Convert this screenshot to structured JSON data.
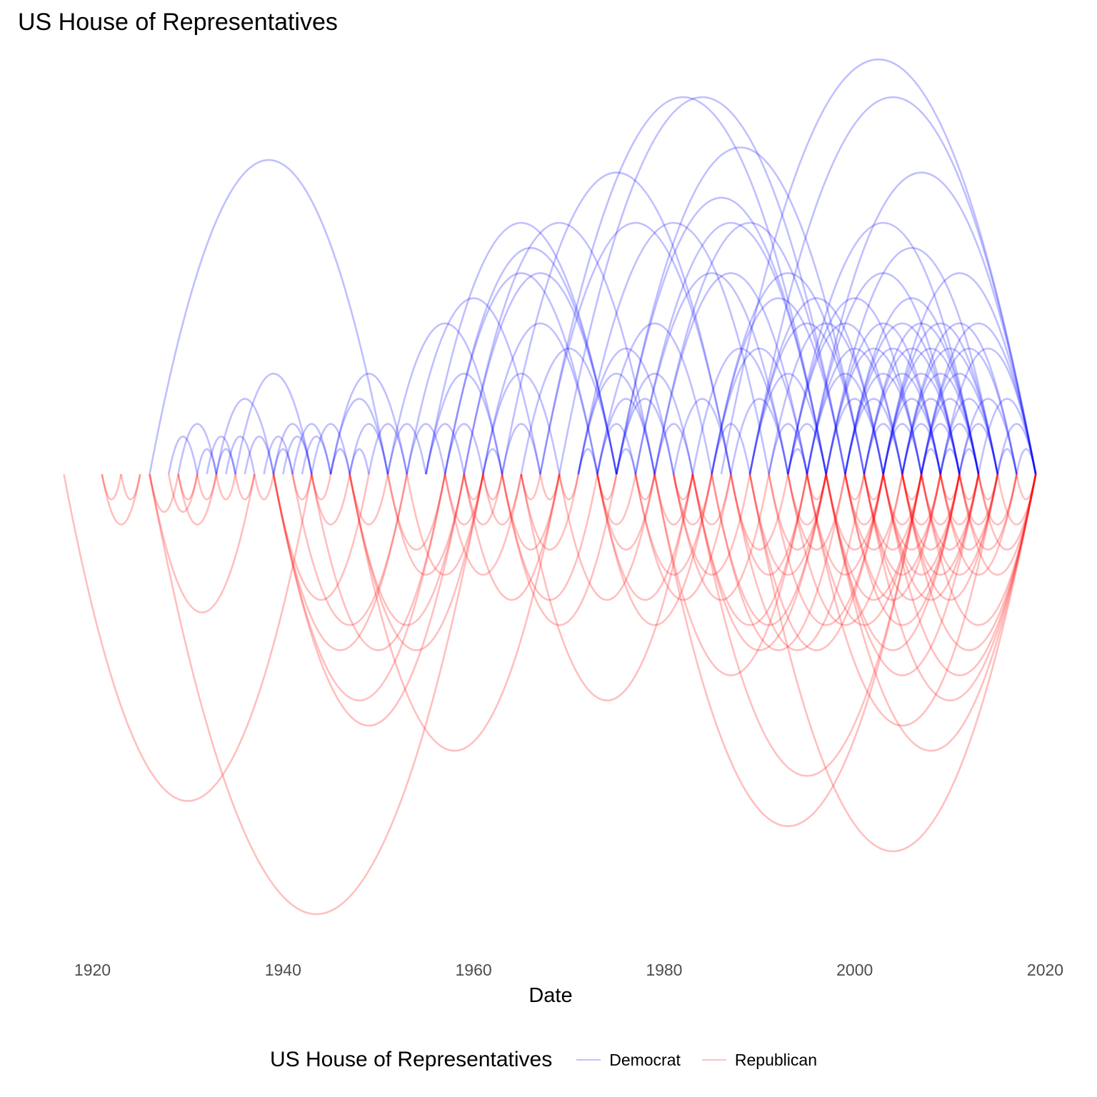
{
  "title": "US House of Representatives",
  "chart_data": {
    "type": "arc",
    "title": "US House of Representatives",
    "xlabel": "Date",
    "ylabel": "",
    "xlim": [
      1917,
      2020
    ],
    "x_ticks": [
      "1920",
      "1940",
      "1960",
      "1980",
      "2000",
      "2020"
    ],
    "grid": false,
    "legend": {
      "title": "US House of Representatives",
      "placement": "bottom"
    },
    "series": [
      {
        "name": "Democrat",
        "color": "#0000ff",
        "arcs": [
          [
            1926,
            1951
          ],
          [
            1928,
            1931
          ],
          [
            1929,
            1933
          ],
          [
            1931,
            1933
          ],
          [
            1932,
            1935
          ],
          [
            1933,
            1935
          ],
          [
            1933,
            1939
          ],
          [
            1934,
            1937
          ],
          [
            1935,
            1943
          ],
          [
            1936,
            1939
          ],
          [
            1938,
            1941
          ],
          [
            1939,
            1941
          ],
          [
            1939,
            1943
          ],
          [
            1940,
            1943
          ],
          [
            1941,
            1945
          ],
          [
            1942,
            1945
          ],
          [
            1943,
            1947
          ],
          [
            1945,
            1947
          ],
          [
            1945,
            1951
          ],
          [
            1945,
            1953
          ],
          [
            1947,
            1949
          ],
          [
            1947,
            1951
          ],
          [
            1949,
            1953
          ],
          [
            1951,
            1955
          ],
          [
            1951,
            1963
          ],
          [
            1953,
            1957
          ],
          [
            1953,
            1967
          ],
          [
            1955,
            1963
          ],
          [
            1955,
            1975
          ],
          [
            1957,
            1961
          ],
          [
            1957,
            1973
          ],
          [
            1957,
            1975
          ],
          [
            1959,
            1979
          ],
          [
            1961,
            1963
          ],
          [
            1961,
            1969
          ],
          [
            1961,
            1973
          ],
          [
            1963,
            1967
          ],
          [
            1963,
            1987
          ],
          [
            1965,
            1975
          ],
          [
            1967,
            1987
          ],
          [
            1967,
            1997
          ],
          [
            1969,
            1999
          ],
          [
            1971,
            1973
          ],
          [
            1971,
            1979
          ],
          [
            1971,
            1981
          ],
          [
            1973,
            1977
          ],
          [
            1973,
            1979
          ],
          [
            1973,
            1985
          ],
          [
            1975,
            1977
          ],
          [
            1975,
            1981
          ],
          [
            1975,
            1983
          ],
          [
            1975,
            1997
          ],
          [
            1975,
            2001
          ],
          [
            1977,
            1993
          ],
          [
            1977,
            1997
          ],
          [
            1979,
            1983
          ],
          [
            1979,
            1995
          ],
          [
            1979,
            1999
          ],
          [
            1981,
            1987
          ],
          [
            1983,
            1993
          ],
          [
            1985,
            1989
          ],
          [
            1985,
            1995
          ],
          [
            1985,
            1999
          ],
          [
            1987,
            1993
          ],
          [
            1989,
            1997
          ],
          [
            1989,
            2001
          ],
          [
            1989,
            2003
          ],
          [
            1991,
            1995
          ],
          [
            1991,
            2003
          ],
          [
            1993,
            1995
          ],
          [
            1993,
            1997
          ],
          [
            1993,
            2005
          ],
          [
            1993,
            2007
          ],
          [
            1995,
            2003
          ],
          [
            1995,
            2005
          ],
          [
            1995,
            2011
          ],
          [
            1997,
            2003
          ],
          [
            1997,
            2007
          ],
          [
            1997,
            2009
          ],
          [
            1997,
            2015
          ],
          [
            1999,
            2005
          ],
          [
            1999,
            2007
          ],
          [
            1999,
            2009
          ],
          [
            1999,
            2011
          ],
          [
            1999,
            2013
          ],
          [
            2001,
            2005
          ],
          [
            2001,
            2009
          ],
          [
            2001,
            2011
          ],
          [
            2001,
            2013
          ],
          [
            2003,
            2007
          ],
          [
            2003,
            2009
          ],
          [
            2003,
            2011
          ],
          [
            2003,
            2013
          ],
          [
            2003,
            2015
          ],
          [
            2005,
            2009
          ],
          [
            2005,
            2011
          ],
          [
            2005,
            2013
          ],
          [
            2005,
            2015
          ],
          [
            2005,
            2017
          ],
          [
            2007,
            2009
          ],
          [
            2007,
            2011
          ],
          [
            2007,
            2013
          ],
          [
            2007,
            2015
          ],
          [
            2007,
            2017
          ],
          [
            2007,
            2019
          ],
          [
            2009,
            2011
          ],
          [
            2009,
            2013
          ],
          [
            2009,
            2015
          ],
          [
            2009,
            2019
          ],
          [
            2011,
            2013
          ],
          [
            2011,
            2015
          ],
          [
            2011,
            2017
          ],
          [
            2013,
            2019
          ],
          [
            2015,
            2017
          ],
          [
            2015,
            2019
          ],
          [
            2017,
            2019
          ],
          [
            1993,
            2013
          ],
          [
            1986,
            2019
          ],
          [
            1995,
            2019
          ],
          [
            2003,
            2019
          ],
          [
            1989,
            2019
          ],
          [
            1959,
            1975
          ],
          [
            1955,
            1959
          ],
          [
            1971,
            1991
          ],
          [
            1985,
            2001
          ]
        ]
      },
      {
        "name": "Republican",
        "color": "#ff0000",
        "arcs": [
          [
            1917,
            1943
          ],
          [
            1921,
            1923
          ],
          [
            1921,
            1925
          ],
          [
            1923,
            1925
          ],
          [
            1926,
            1929
          ],
          [
            1926,
            1937
          ],
          [
            1926,
            1961
          ],
          [
            1928,
            1931
          ],
          [
            1929,
            1931
          ],
          [
            1929,
            1933
          ],
          [
            1931,
            1933
          ],
          [
            1933,
            1935
          ],
          [
            1935,
            1937
          ],
          [
            1937,
            1939
          ],
          [
            1939,
            1949
          ],
          [
            1939,
            1953
          ],
          [
            1939,
            1957
          ],
          [
            1939,
            1959
          ],
          [
            1941,
            1943
          ],
          [
            1941,
            1953
          ],
          [
            1943,
            1945
          ],
          [
            1943,
            1947
          ],
          [
            1943,
            1957
          ],
          [
            1947,
            1951
          ],
          [
            1947,
            1959
          ],
          [
            1947,
            1961
          ],
          [
            1947,
            1969
          ],
          [
            1951,
            1957
          ],
          [
            1951,
            1959
          ],
          [
            1953,
            1961
          ],
          [
            1957,
            1961
          ],
          [
            1957,
            1965
          ],
          [
            1959,
            1961
          ],
          [
            1959,
            1963
          ],
          [
            1959,
            1969
          ],
          [
            1961,
            1963
          ],
          [
            1961,
            1965
          ],
          [
            1963,
            1969
          ],
          [
            1963,
            1973
          ],
          [
            1963,
            1975
          ],
          [
            1965,
            1967
          ],
          [
            1965,
            1983
          ],
          [
            1969,
            1979
          ],
          [
            1973,
            1977
          ],
          [
            1973,
            1979
          ],
          [
            1973,
            1983
          ],
          [
            1973,
            1985
          ],
          [
            1977,
            1979
          ],
          [
            1977,
            1987
          ],
          [
            1979,
            1983
          ],
          [
            1981,
            1983
          ],
          [
            1981,
            1985
          ],
          [
            1981,
            1989
          ],
          [
            1981,
            1991
          ],
          [
            1983,
            1987
          ],
          [
            1983,
            1995
          ],
          [
            1983,
            1997
          ],
          [
            1985,
            1997
          ],
          [
            1985,
            1999
          ],
          [
            1987,
            1993
          ],
          [
            1987,
            1995
          ],
          [
            1987,
            2001
          ],
          [
            1989,
            1997
          ],
          [
            1989,
            2003
          ],
          [
            1991,
            1997
          ],
          [
            1991,
            2003
          ],
          [
            1993,
            1997
          ],
          [
            1993,
            1999
          ],
          [
            1993,
            2005
          ],
          [
            1995,
            1997
          ],
          [
            1995,
            2003
          ],
          [
            1995,
            2007
          ],
          [
            1997,
            2003
          ],
          [
            1997,
            2007
          ],
          [
            1997,
            2011
          ],
          [
            1997,
            2013
          ],
          [
            1999,
            2001
          ],
          [
            1999,
            2005
          ],
          [
            1999,
            2009
          ],
          [
            1999,
            2011
          ],
          [
            2001,
            2003
          ],
          [
            2001,
            2007
          ],
          [
            2001,
            2009
          ],
          [
            2001,
            2011
          ],
          [
            2003,
            2007
          ],
          [
            2003,
            2009
          ],
          [
            2003,
            2011
          ],
          [
            2003,
            2013
          ],
          [
            2005,
            2007
          ],
          [
            2005,
            2009
          ],
          [
            2005,
            2011
          ],
          [
            2005,
            2013
          ],
          [
            2005,
            2015
          ],
          [
            2007,
            2011
          ],
          [
            2007,
            2013
          ],
          [
            2007,
            2015
          ],
          [
            2009,
            2011
          ],
          [
            2009,
            2013
          ],
          [
            2009,
            2015
          ],
          [
            2009,
            2017
          ],
          [
            2011,
            2013
          ],
          [
            2011,
            2015
          ],
          [
            2011,
            2017
          ],
          [
            2011,
            2019
          ],
          [
            2013,
            2015
          ],
          [
            2013,
            2017
          ],
          [
            2013,
            2019
          ],
          [
            2015,
            2019
          ],
          [
            2017,
            2019
          ],
          [
            1979,
            1995
          ],
          [
            1989,
            2019
          ],
          [
            1997,
            2019
          ],
          [
            1979,
            2007
          ],
          [
            1995,
            2015
          ],
          [
            1983,
            2007
          ],
          [
            2001,
            2019
          ],
          [
            2003,
            2019
          ],
          [
            2007,
            2019
          ],
          [
            1967,
            1969
          ],
          [
            1969,
            1971
          ],
          [
            1973,
            1975
          ],
          [
            1965,
            1971
          ],
          [
            1977,
            1985
          ],
          [
            1999,
            2003
          ],
          [
            2005,
            2019
          ]
        ]
      }
    ]
  }
}
